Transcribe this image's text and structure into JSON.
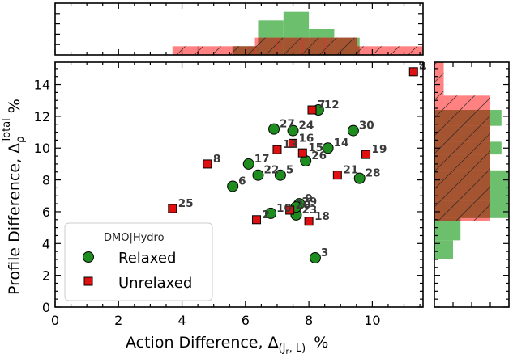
{
  "chart_data": {
    "type": "scatter",
    "xlabel": "Action Difference, Δ",
    "xlabel_sub": "(J",
    "xlabel_sub2": "r",
    "xlabel_sub3": ", L)",
    "xlabel_unit": "%",
    "ylabel": "Profile Difference, Δ",
    "ylabel_sub": "ρ",
    "ylabel_sup": "Total",
    "ylabel_unit": "%",
    "xlim": [
      0,
      11.6
    ],
    "ylim": [
      0,
      15.4
    ],
    "xticks": [
      "0",
      "2",
      "4",
      "6",
      "8",
      "10"
    ],
    "yticks": [
      "0",
      "2",
      "4",
      "6",
      "8",
      "10",
      "12",
      "14"
    ],
    "legend": {
      "title": "DMO|Hydro",
      "placement": "lower-left",
      "entries": [
        "Relaxed",
        "Unrelaxed"
      ]
    },
    "colors": {
      "relaxed": "#1e8c1e",
      "unrelaxed": "#e01010",
      "relaxed_hist": "#6cbf6c",
      "unrelaxed_hist": "#ff6b6b",
      "overlap_hist": "#a0522d"
    },
    "series": [
      {
        "name": "Relaxed",
        "points": [
          {
            "label": "3",
            "x": 8.2,
            "y": 3.1
          },
          {
            "label": "6",
            "x": 5.6,
            "y": 7.6
          },
          {
            "label": "9",
            "x": 7.7,
            "y": 6.5
          },
          {
            "label": "17",
            "x": 6.1,
            "y": 9.0
          },
          {
            "label": "22",
            "x": 6.4,
            "y": 8.3
          },
          {
            "label": "5",
            "x": 7.1,
            "y": 8.3
          },
          {
            "label": "27",
            "x": 6.9,
            "y": 11.2
          },
          {
            "label": "24",
            "x": 7.5,
            "y": 11.1
          },
          {
            "label": "12",
            "x": 8.3,
            "y": 12.4
          },
          {
            "label": "30",
            "x": 9.4,
            "y": 11.1
          },
          {
            "label": "14",
            "x": 8.6,
            "y": 10.0
          },
          {
            "label": "26",
            "x": 7.9,
            "y": 9.2
          },
          {
            "label": "28",
            "x": 9.6,
            "y": 8.1
          },
          {
            "label": "10",
            "x": 6.8,
            "y": 5.9
          },
          {
            "label": "23",
            "x": 7.6,
            "y": 5.8
          },
          {
            "label": "29",
            "x": 7.6,
            "y": 6.3
          }
        ]
      },
      {
        "name": "Unrelaxed",
        "points": [
          {
            "label": "25",
            "x": 3.7,
            "y": 6.2
          },
          {
            "label": "8",
            "x": 4.8,
            "y": 9.0
          },
          {
            "label": "2",
            "x": 6.35,
            "y": 5.5
          },
          {
            "label": "13",
            "x": 7.0,
            "y": 9.9
          },
          {
            "label": "16",
            "x": 7.5,
            "y": 10.3
          },
          {
            "label": "15",
            "x": 7.8,
            "y": 9.7
          },
          {
            "label": "7",
            "x": 8.1,
            "y": 12.4
          },
          {
            "label": "21",
            "x": 8.9,
            "y": 8.3
          },
          {
            "label": "19",
            "x": 9.8,
            "y": 9.6
          },
          {
            "label": "18",
            "x": 8.0,
            "y": 5.4
          },
          {
            "label": "20",
            "x": 7.4,
            "y": 6.1
          },
          {
            "label": "4",
            "x": 11.3,
            "y": 14.8
          }
        ]
      }
    ],
    "top_histogram": {
      "relaxed_bins": [
        {
          "x0": 5.6,
          "x1": 6.4,
          "count": 1
        },
        {
          "x0": 6.4,
          "x1": 7.2,
          "count": 4
        },
        {
          "x0": 7.2,
          "x1": 8.0,
          "count": 5
        },
        {
          "x0": 8.0,
          "x1": 8.8,
          "count": 3
        },
        {
          "x0": 8.8,
          "x1": 9.6,
          "count": 2
        },
        {
          "x0": 9.6,
          "x1": 10.4,
          "count": 0
        }
      ],
      "unrelaxed_bins": [
        {
          "x0": 3.7,
          "x1": 4.5,
          "count": 1
        },
        {
          "x0": 4.5,
          "x1": 5.6,
          "count": 1
        },
        {
          "x0": 5.6,
          "x1": 6.3,
          "count": 1
        },
        {
          "x0": 6.3,
          "x1": 7.0,
          "count": 2
        },
        {
          "x0": 7.0,
          "x1": 7.8,
          "count": 2
        },
        {
          "x0": 7.8,
          "x1": 8.5,
          "count": 2
        },
        {
          "x0": 8.5,
          "x1": 9.5,
          "count": 2
        },
        {
          "x0": 9.5,
          "x1": 11.6,
          "count": 1
        }
      ]
    },
    "right_histogram": {
      "relaxed_bins": [
        {
          "y0": 3.0,
          "y1": 4.2,
          "count": 1
        },
        {
          "y0": 4.2,
          "y1": 5.6,
          "count": 1.4
        },
        {
          "y0": 5.6,
          "y1": 8.6,
          "count": 4
        },
        {
          "y0": 8.6,
          "y1": 9.6,
          "count": 3
        },
        {
          "y0": 9.6,
          "y1": 10.4,
          "count": 3.6
        },
        {
          "y0": 10.4,
          "y1": 11.4,
          "count": 3
        },
        {
          "y0": 11.4,
          "y1": 12.4,
          "count": 3.6
        }
      ],
      "unrelaxed_bins": [
        {
          "y0": 5.4,
          "y1": 6.7,
          "count": 3
        },
        {
          "y0": 6.7,
          "y1": 9.3,
          "count": 3
        },
        {
          "y0": 9.3,
          "y1": 10.7,
          "count": 3
        },
        {
          "y0": 10.7,
          "y1": 13.3,
          "count": 3
        },
        {
          "y0": 13.3,
          "y1": 14.2,
          "count": 0.5
        },
        {
          "y0": 14.2,
          "y1": 15.4,
          "count": 0.5
        }
      ]
    }
  }
}
